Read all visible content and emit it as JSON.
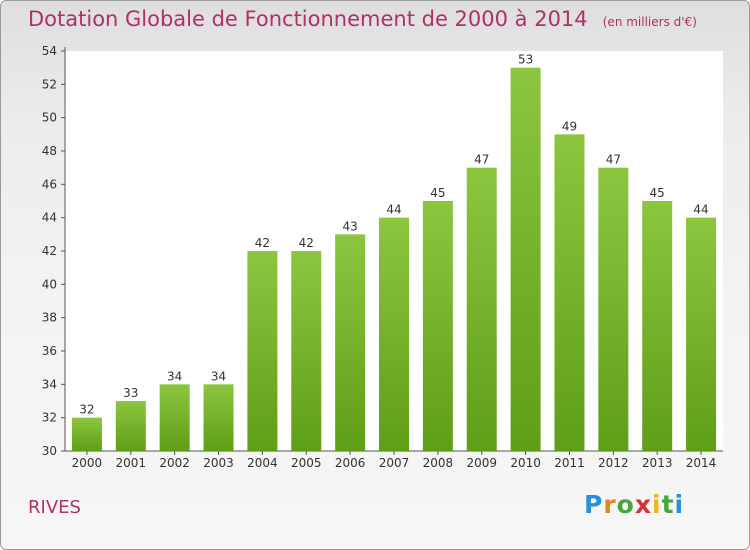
{
  "chart_data": {
    "type": "bar",
    "title": "Dotation Globale de Fonctionnement de 2000 à 2014",
    "subtitle": "(en milliers d'€)",
    "categories": [
      "2000",
      "2001",
      "2002",
      "2003",
      "2004",
      "2005",
      "2006",
      "2007",
      "2008",
      "2009",
      "2010",
      "2011",
      "2012",
      "2013",
      "2014"
    ],
    "values": [
      32,
      33,
      34,
      34,
      42,
      42,
      43,
      44,
      45,
      47,
      53,
      49,
      47,
      45,
      44
    ],
    "ylim": [
      30,
      54
    ],
    "yticks": [
      30,
      32,
      34,
      36,
      38,
      40,
      42,
      44,
      46,
      48,
      50,
      52,
      54
    ],
    "grid": false,
    "bar_color": "#8cc63f",
    "bar_color_dark": "#5f9e17",
    "label_color": "#333333",
    "title_color": "#b0306a"
  },
  "footer": {
    "city": "RIVES",
    "logo_letters": [
      "P",
      "r",
      "o",
      "x",
      "i",
      "t",
      "i"
    ],
    "logo_colors": [
      "#2a8fd4",
      "#e8821e",
      "#46a83c",
      "#d8313a",
      "#e8b81e",
      "#46a83c",
      "#2a8fd4"
    ]
  }
}
